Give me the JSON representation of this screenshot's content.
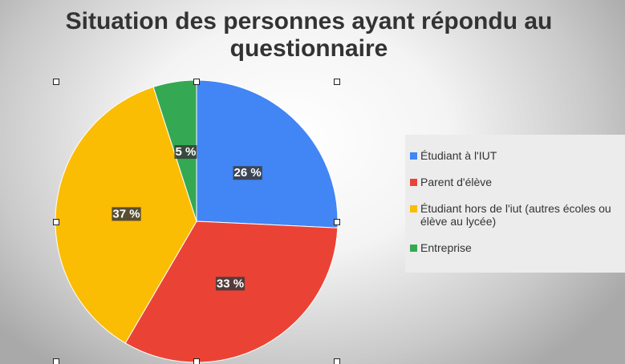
{
  "chart_data": {
    "type": "pie",
    "title": "Situation des personnes ayant répondu au questionnaire",
    "slices": [
      {
        "name": "Étudiant à l'IUT",
        "value": 26,
        "label": "26 %",
        "color": "#4285f4"
      },
      {
        "name": "Parent d'élève",
        "value": 33,
        "label": "33 %",
        "color": "#ea4335"
      },
      {
        "name": "Étudiant hors de l'iut (autres écoles ou élève au lycée)",
        "value": 37,
        "label": "37 %",
        "color": "#fbbc04"
      },
      {
        "name": "Entreprise",
        "value": 5,
        "label": "5 %",
        "color": "#34a853"
      }
    ],
    "legend_position": "right"
  }
}
